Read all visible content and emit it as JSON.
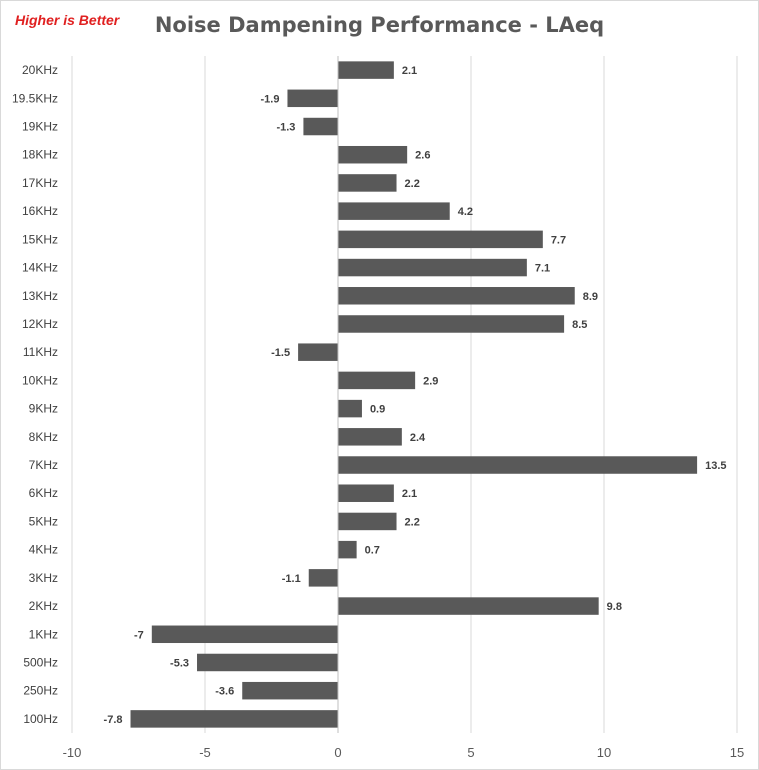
{
  "chart_data": {
    "type": "bar",
    "orientation": "horizontal",
    "note": "Higher is Better",
    "title": "Noise Dampening Performance - LAeq",
    "categories": [
      "20KHz",
      "19.5KHz",
      "19KHz",
      "18KHz",
      "17KHz",
      "16KHz",
      "15KHz",
      "14KHz",
      "13KHz",
      "12KHz",
      "11KHz",
      "10KHz",
      "9KHz",
      "8KHz",
      "7KHz",
      "6KHz",
      "5KHz",
      "4KHz",
      "3KHz",
      "2KHz",
      "1KHz",
      "500Hz",
      "250Hz",
      "100Hz"
    ],
    "values": [
      2.1,
      -1.9,
      -1.3,
      2.6,
      2.2,
      4.2,
      7.7,
      7.1,
      8.9,
      8.5,
      -1.5,
      2.9,
      0.9,
      2.4,
      13.5,
      2.1,
      2.2,
      0.7,
      -1.1,
      9.8,
      -7,
      -5.3,
      -3.6,
      -7.8
    ],
    "xlim": [
      -10,
      15
    ],
    "xticks": [
      -10,
      -5,
      0,
      5,
      10,
      15
    ],
    "grid": true,
    "bar_color": "#595959",
    "note_color": "#e02020"
  }
}
